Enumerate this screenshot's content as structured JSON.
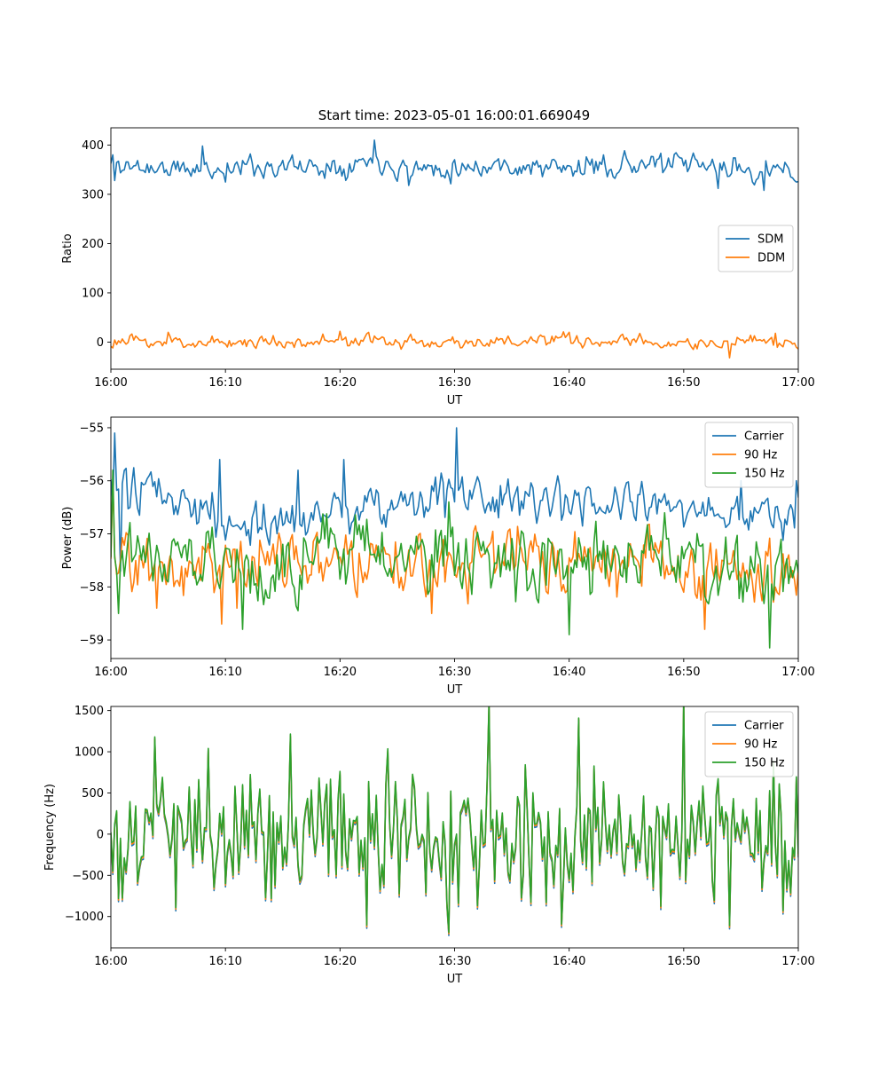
{
  "figure_title": "Start time: 2023-05-01 16:00:01.669049",
  "colors": {
    "blue": "#1f77b4",
    "orange": "#ff7f0e",
    "green": "#2ca02c"
  },
  "chart_data": [
    {
      "type": "line",
      "xlabel": "UT",
      "ylabel": "Ratio",
      "xlim": [
        "16:00",
        "17:00"
      ],
      "ylim": [
        -55,
        435
      ],
      "xticks": [
        "16:00",
        "16:10",
        "16:20",
        "16:30",
        "16:40",
        "16:50",
        "17:00"
      ],
      "yticks": [
        0,
        100,
        200,
        300,
        400
      ],
      "legend": "center-right",
      "series": [
        {
          "name": "SDM",
          "color": "#1f77b4",
          "noise": "smooth",
          "amp": 14,
          "seed": 11,
          "knots": [
            [
              0,
              360
            ],
            [
              3,
              355
            ],
            [
              7,
              348
            ],
            [
              12,
              358
            ],
            [
              18,
              356
            ],
            [
              23,
              370
            ],
            [
              27,
              352
            ],
            [
              33,
              360
            ],
            [
              40,
              350
            ],
            [
              45,
              362
            ],
            [
              50,
              358
            ],
            [
              55,
              352
            ],
            [
              60,
              340
            ]
          ],
          "spikes": [
            [
              0.1,
              380
            ],
            [
              0.4,
              328
            ],
            [
              8,
              398
            ],
            [
              10,
              325
            ],
            [
              23,
              410
            ],
            [
              26,
              318
            ],
            [
              43,
              380
            ],
            [
              53,
              312
            ],
            [
              57,
              308
            ],
            [
              59.8,
              325
            ]
          ]
        },
        {
          "name": "DDM",
          "color": "#ff7f0e",
          "noise": "smooth",
          "amp": 8,
          "seed": 23,
          "knots": [
            [
              0,
              0
            ],
            [
              10,
              0
            ],
            [
              20,
              2
            ],
            [
              30,
              0
            ],
            [
              40,
              2
            ],
            [
              50,
              -2
            ],
            [
              60,
              -2
            ]
          ],
          "spikes": [
            [
              5,
              20
            ],
            [
              20,
              22
            ],
            [
              40,
              20
            ],
            [
              54,
              -32
            ],
            [
              58,
              18
            ]
          ]
        }
      ]
    },
    {
      "type": "line",
      "xlabel": "UT",
      "ylabel": "Power (dB)",
      "xlim": [
        "16:00",
        "17:00"
      ],
      "ylim": [
        -59.35,
        -54.8
      ],
      "xticks": [
        "16:00",
        "16:10",
        "16:20",
        "16:30",
        "16:40",
        "16:50",
        "17:00"
      ],
      "yticks": [
        -59,
        -58,
        -57,
        -56,
        -55
      ],
      "legend": "top-right",
      "series": [
        {
          "name": "Carrier",
          "color": "#1f77b4",
          "noise": "smooth",
          "amp": 0.28,
          "seed": 31,
          "knots": [
            [
              0,
              -56.3
            ],
            [
              6,
              -56.3
            ],
            [
              12,
              -56.8
            ],
            [
              15,
              -56.7
            ],
            [
              20,
              -56.5
            ],
            [
              25,
              -56.4
            ],
            [
              30,
              -56.3
            ],
            [
              35,
              -56.4
            ],
            [
              40,
              -56.5
            ],
            [
              45,
              -56.5
            ],
            [
              50,
              -56.5
            ],
            [
              55,
              -56.6
            ],
            [
              60,
              -56.7
            ]
          ],
          "spikes": [
            [
              0.3,
              -55.1
            ],
            [
              0.8,
              -57.7
            ],
            [
              9.5,
              -55.6
            ],
            [
              16.3,
              -55.8
            ],
            [
              20.3,
              -55.6
            ],
            [
              30.1,
              -55.0
            ],
            [
              55,
              -56.0
            ],
            [
              59.8,
              -56.0
            ]
          ]
        },
        {
          "name": "90 Hz",
          "color": "#ff7f0e",
          "noise": "smooth",
          "amp": 0.36,
          "seed": 47,
          "knots": [
            [
              0,
              -57.3
            ],
            [
              6,
              -57.6
            ],
            [
              12,
              -57.6
            ],
            [
              18,
              -57.3
            ],
            [
              24,
              -57.5
            ],
            [
              30,
              -57.5
            ],
            [
              36,
              -57.3
            ],
            [
              42,
              -57.6
            ],
            [
              48,
              -57.5
            ],
            [
              54,
              -57.6
            ],
            [
              60,
              -57.8
            ]
          ],
          "spikes": [
            [
              0.2,
              -56.0
            ],
            [
              4,
              -58.4
            ],
            [
              9.6,
              -58.7
            ],
            [
              11,
              -58.4
            ],
            [
              28,
              -58.5
            ],
            [
              51.8,
              -58.8
            ],
            [
              59,
              -57.5
            ]
          ]
        },
        {
          "name": "150 Hz",
          "color": "#2ca02c",
          "noise": "smooth",
          "amp": 0.4,
          "seed": 59,
          "knots": [
            [
              0,
              -57.3
            ],
            [
              6,
              -57.3
            ],
            [
              12,
              -57.8
            ],
            [
              18,
              -57.3
            ],
            [
              24,
              -57.5
            ],
            [
              30,
              -57.4
            ],
            [
              36,
              -57.6
            ],
            [
              42,
              -57.5
            ],
            [
              48,
              -57.5
            ],
            [
              54,
              -57.7
            ],
            [
              60,
              -58.0
            ]
          ],
          "spikes": [
            [
              0.2,
              -55.8
            ],
            [
              0.6,
              -58.5
            ],
            [
              11.5,
              -58.8
            ],
            [
              29.5,
              -56.4
            ],
            [
              40,
              -58.9
            ],
            [
              57.5,
              -59.15
            ],
            [
              59.8,
              -57.5
            ]
          ]
        }
      ]
    },
    {
      "type": "line",
      "xlabel": "UT",
      "ylabel": "Frequency (Hz)",
      "xlim": [
        "16:00",
        "17:00"
      ],
      "ylim": [
        -1380,
        1550
      ],
      "xticks": [
        "16:00",
        "16:10",
        "16:20",
        "16:30",
        "16:40",
        "16:50",
        "17:00"
      ],
      "yticks": [
        -1000,
        -500,
        0,
        500,
        1000,
        1500
      ],
      "legend": "top-right",
      "series": [
        {
          "name": "Carrier",
          "color": "#1f77b4",
          "noise": "rough",
          "amp": 380,
          "seed": 71,
          "knots": [
            [
              0,
              -40
            ],
            [
              60,
              -40
            ]
          ],
          "spikes": [
            [
              0.7,
              -820
            ],
            [
              3.9,
              1150
            ],
            [
              8.5,
              1020
            ],
            [
              29.5,
              -1230
            ],
            [
              40.8,
              1390
            ],
            [
              54,
              -1150
            ],
            [
              58.6,
              -970
            ]
          ]
        },
        {
          "name": "90 Hz",
          "color": "#ff7f0e",
          "noise": "rough",
          "amp": 380,
          "seed": 71,
          "knots": [
            [
              0,
              -20
            ],
            [
              60,
              -20
            ]
          ],
          "spikes": [
            [
              0.7,
              -800
            ],
            [
              3.9,
              1160
            ],
            [
              8.5,
              1030
            ],
            [
              29.5,
              -1210
            ],
            [
              40.8,
              1400
            ],
            [
              54,
              -1130
            ],
            [
              58.6,
              -950
            ]
          ]
        },
        {
          "name": "150 Hz",
          "color": "#2ca02c",
          "noise": "rough",
          "amp": 380,
          "seed": 71,
          "knots": [
            [
              0,
              0
            ],
            [
              60,
              0
            ]
          ],
          "spikes": [
            [
              0.7,
              -780
            ],
            [
              3.9,
              1180
            ],
            [
              8.5,
              1040
            ],
            [
              29.5,
              -1190
            ],
            [
              40.8,
              1410
            ],
            [
              54,
              -1110
            ],
            [
              58.6,
              -930
            ]
          ]
        }
      ]
    }
  ]
}
